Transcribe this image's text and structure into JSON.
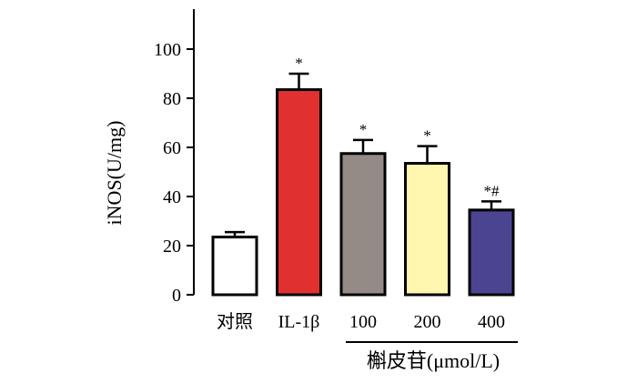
{
  "chart_data": {
    "type": "bar",
    "ylabel": "iNOS(U/mg)",
    "xlabel": "",
    "ylim": [
      0,
      110
    ],
    "yticks": [
      0,
      20,
      40,
      60,
      80,
      100
    ],
    "ytick_labels": [
      "0",
      "20",
      "40",
      "60",
      "80",
      "100"
    ],
    "categories": [
      "对照",
      "IL-1β",
      "100",
      "200",
      "400"
    ],
    "values": [
      23.5,
      83.5,
      57.5,
      53.5,
      34.5
    ],
    "errors": [
      2.0,
      6.5,
      5.5,
      7.0,
      3.5
    ],
    "significance": [
      "",
      "*",
      "*",
      "*",
      "*#"
    ],
    "colors": [
      "#ffffff",
      "#e03030",
      "#948b86",
      "#fff6b0",
      "#4b4490"
    ],
    "group_label": "槲皮苷(μmol/L)",
    "grid": false
  }
}
